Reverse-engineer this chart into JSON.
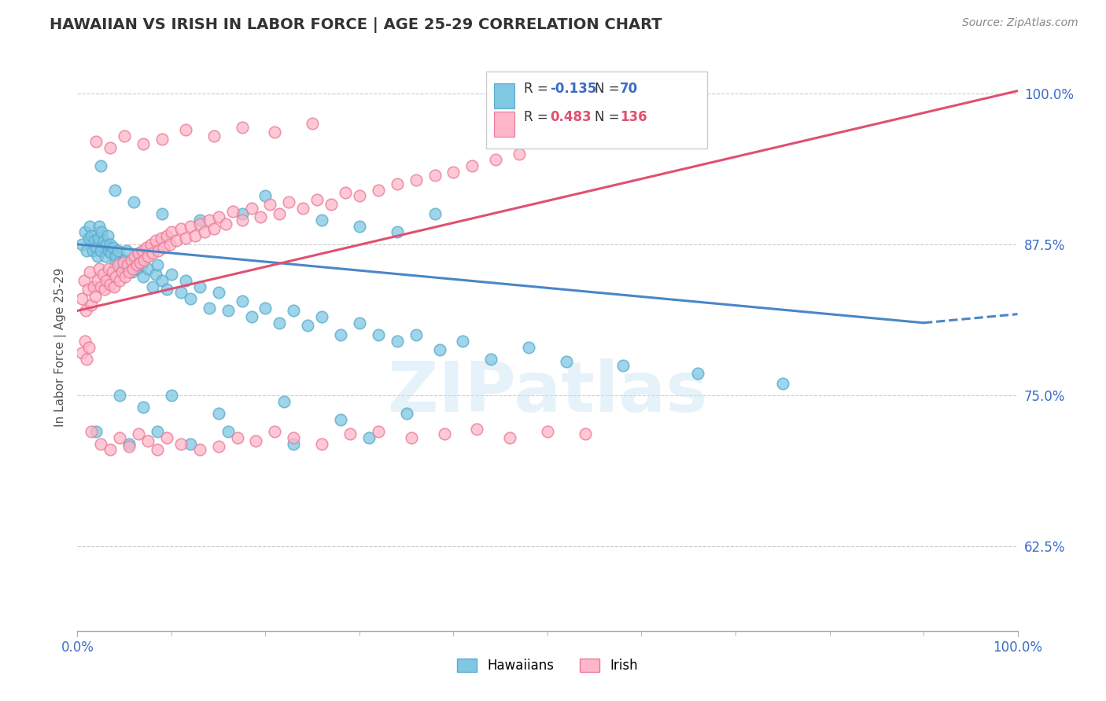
{
  "title": "HAWAIIAN VS IRISH IN LABOR FORCE | AGE 25-29 CORRELATION CHART",
  "source_text": "Source: ZipAtlas.com",
  "ylabel": "In Labor Force | Age 25-29",
  "xlim": [
    0.0,
    1.0
  ],
  "ylim": [
    0.555,
    1.025
  ],
  "yticks": [
    0.625,
    0.75,
    0.875,
    1.0
  ],
  "ytick_labels": [
    "62.5%",
    "75.0%",
    "87.5%",
    "100.0%"
  ],
  "xtick_labels": [
    "0.0%",
    "100.0%"
  ],
  "legend_r1": "-0.135",
  "legend_n1": "70",
  "legend_r2": "0.483",
  "legend_n2": "136",
  "hawaiian_color": "#7ec8e3",
  "hawaiian_edge": "#5aabcc",
  "irish_color": "#ffb6c8",
  "irish_edge": "#e87a96",
  "trend_hawaiian_color": "#4a86c8",
  "trend_irish_color": "#e05070",
  "watermark": "ZIPatlas",
  "background_color": "#ffffff",
  "hawaiian_x": [
    0.005,
    0.008,
    0.01,
    0.012,
    0.013,
    0.015,
    0.016,
    0.018,
    0.02,
    0.021,
    0.022,
    0.023,
    0.025,
    0.026,
    0.028,
    0.03,
    0.031,
    0.032,
    0.033,
    0.035,
    0.036,
    0.038,
    0.04,
    0.041,
    0.043,
    0.045,
    0.048,
    0.05,
    0.052,
    0.055,
    0.058,
    0.06,
    0.063,
    0.065,
    0.068,
    0.07,
    0.075,
    0.08,
    0.083,
    0.085,
    0.09,
    0.095,
    0.1,
    0.11,
    0.115,
    0.12,
    0.13,
    0.14,
    0.15,
    0.16,
    0.175,
    0.185,
    0.2,
    0.215,
    0.23,
    0.245,
    0.26,
    0.28,
    0.3,
    0.32,
    0.34,
    0.36,
    0.385,
    0.41,
    0.44,
    0.48,
    0.52,
    0.58,
    0.66,
    0.75
  ],
  "hawaiian_y": [
    0.875,
    0.885,
    0.87,
    0.88,
    0.89,
    0.882,
    0.87,
    0.878,
    0.872,
    0.865,
    0.88,
    0.89,
    0.87,
    0.885,
    0.878,
    0.865,
    0.875,
    0.882,
    0.87,
    0.875,
    0.868,
    0.872,
    0.858,
    0.865,
    0.87,
    0.86,
    0.855,
    0.862,
    0.87,
    0.858,
    0.852,
    0.86,
    0.855,
    0.865,
    0.858,
    0.848,
    0.855,
    0.84,
    0.85,
    0.858,
    0.845,
    0.838,
    0.85,
    0.835,
    0.845,
    0.83,
    0.84,
    0.822,
    0.835,
    0.82,
    0.828,
    0.815,
    0.822,
    0.81,
    0.82,
    0.808,
    0.815,
    0.8,
    0.81,
    0.8,
    0.795,
    0.8,
    0.788,
    0.795,
    0.78,
    0.79,
    0.778,
    0.775,
    0.768,
    0.76
  ],
  "hawaiian_outlier_x": [
    0.025,
    0.04,
    0.06,
    0.09,
    0.13,
    0.175,
    0.2,
    0.26,
    0.3,
    0.34,
    0.38,
    0.045,
    0.07,
    0.1,
    0.15,
    0.22,
    0.28,
    0.35,
    0.02,
    0.055,
    0.085,
    0.12,
    0.16,
    0.23,
    0.31
  ],
  "hawaiian_outlier_y": [
    0.94,
    0.92,
    0.91,
    0.9,
    0.895,
    0.9,
    0.915,
    0.895,
    0.89,
    0.885,
    0.9,
    0.75,
    0.74,
    0.75,
    0.735,
    0.745,
    0.73,
    0.735,
    0.72,
    0.71,
    0.72,
    0.71,
    0.72,
    0.71,
    0.715
  ],
  "irish_x": [
    0.005,
    0.007,
    0.009,
    0.011,
    0.013,
    0.015,
    0.017,
    0.019,
    0.021,
    0.023,
    0.025,
    0.027,
    0.029,
    0.031,
    0.033,
    0.035,
    0.037,
    0.039,
    0.041,
    0.043,
    0.045,
    0.047,
    0.049,
    0.051,
    0.053,
    0.055,
    0.057,
    0.059,
    0.061,
    0.063,
    0.065,
    0.067,
    0.069,
    0.071,
    0.073,
    0.075,
    0.078,
    0.08,
    0.083,
    0.086,
    0.089,
    0.092,
    0.095,
    0.098,
    0.1,
    0.105,
    0.11,
    0.115,
    0.12,
    0.125,
    0.13,
    0.135,
    0.14,
    0.145,
    0.15,
    0.158,
    0.165,
    0.175,
    0.185,
    0.195,
    0.205,
    0.215,
    0.225,
    0.24,
    0.255,
    0.27,
    0.285,
    0.3,
    0.32,
    0.34,
    0.36,
    0.38,
    0.4,
    0.42,
    0.445,
    0.47,
    0.005,
    0.008,
    0.01,
    0.012
  ],
  "irish_y": [
    0.83,
    0.845,
    0.82,
    0.838,
    0.852,
    0.825,
    0.84,
    0.832,
    0.845,
    0.855,
    0.84,
    0.85,
    0.838,
    0.845,
    0.855,
    0.842,
    0.852,
    0.84,
    0.848,
    0.858,
    0.845,
    0.852,
    0.86,
    0.848,
    0.858,
    0.852,
    0.862,
    0.855,
    0.865,
    0.858,
    0.868,
    0.86,
    0.87,
    0.862,
    0.872,
    0.865,
    0.875,
    0.868,
    0.878,
    0.87,
    0.88,
    0.872,
    0.882,
    0.875,
    0.885,
    0.878,
    0.888,
    0.88,
    0.89,
    0.882,
    0.892,
    0.885,
    0.895,
    0.888,
    0.898,
    0.892,
    0.902,
    0.895,
    0.905,
    0.898,
    0.908,
    0.9,
    0.91,
    0.905,
    0.912,
    0.908,
    0.918,
    0.915,
    0.92,
    0.925,
    0.928,
    0.932,
    0.935,
    0.94,
    0.945,
    0.95,
    0.785,
    0.795,
    0.78,
    0.79
  ],
  "irish_outlier_x": [
    0.015,
    0.025,
    0.035,
    0.045,
    0.055,
    0.065,
    0.075,
    0.085,
    0.095,
    0.11,
    0.13,
    0.15,
    0.17,
    0.19,
    0.21,
    0.23,
    0.26,
    0.29,
    0.32,
    0.355,
    0.39,
    0.425,
    0.46,
    0.5,
    0.54,
    0.02,
    0.035,
    0.05,
    0.07,
    0.09,
    0.115,
    0.145,
    0.175,
    0.21,
    0.25
  ],
  "irish_outlier_y": [
    0.72,
    0.71,
    0.705,
    0.715,
    0.708,
    0.718,
    0.712,
    0.705,
    0.715,
    0.71,
    0.705,
    0.708,
    0.715,
    0.712,
    0.72,
    0.715,
    0.71,
    0.718,
    0.72,
    0.715,
    0.718,
    0.722,
    0.715,
    0.72,
    0.718,
    0.96,
    0.955,
    0.965,
    0.958,
    0.962,
    0.97,
    0.965,
    0.972,
    0.968,
    0.975
  ]
}
